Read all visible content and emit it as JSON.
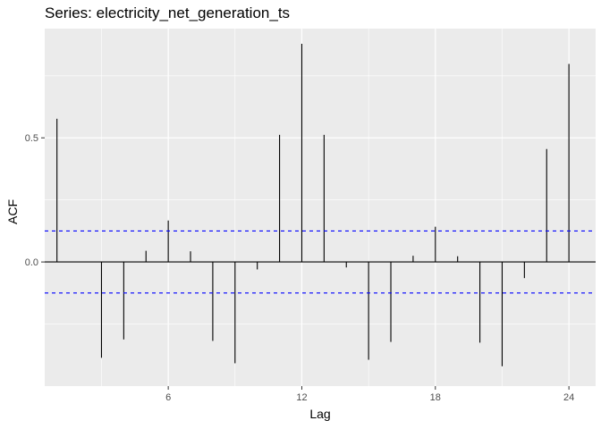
{
  "chart_data": {
    "type": "bar",
    "title": "Series: electricity_net_generation_ts",
    "xlabel": "Lag",
    "ylabel": "ACF",
    "x_ticks": [
      6,
      12,
      18,
      24
    ],
    "y_ticks": [
      0.0,
      0.5
    ],
    "y_tick_labels": [
      "0.0",
      "0.5"
    ],
    "xlim": [
      0.45,
      25.2
    ],
    "ylim": [
      -0.5,
      0.94
    ],
    "lags": [
      1,
      2,
      3,
      4,
      5,
      6,
      7,
      8,
      9,
      10,
      11,
      12,
      13,
      14,
      15,
      16,
      17,
      18,
      19,
      20,
      21,
      22,
      23,
      24
    ],
    "values": [
      0.577,
      0.0,
      -0.386,
      -0.312,
      0.045,
      0.167,
      0.043,
      -0.318,
      -0.408,
      -0.03,
      0.512,
      0.879,
      0.512,
      -0.022,
      -0.394,
      -0.322,
      0.025,
      0.142,
      0.023,
      -0.325,
      -0.42,
      -0.065,
      0.455,
      0.798
    ],
    "confidence_limit": 0.125,
    "colors": {
      "panel": "#ebebeb",
      "grid": "#ffffff",
      "bar": "#000000",
      "ci_line": "#0000ff",
      "zero_line": "#000000"
    }
  }
}
